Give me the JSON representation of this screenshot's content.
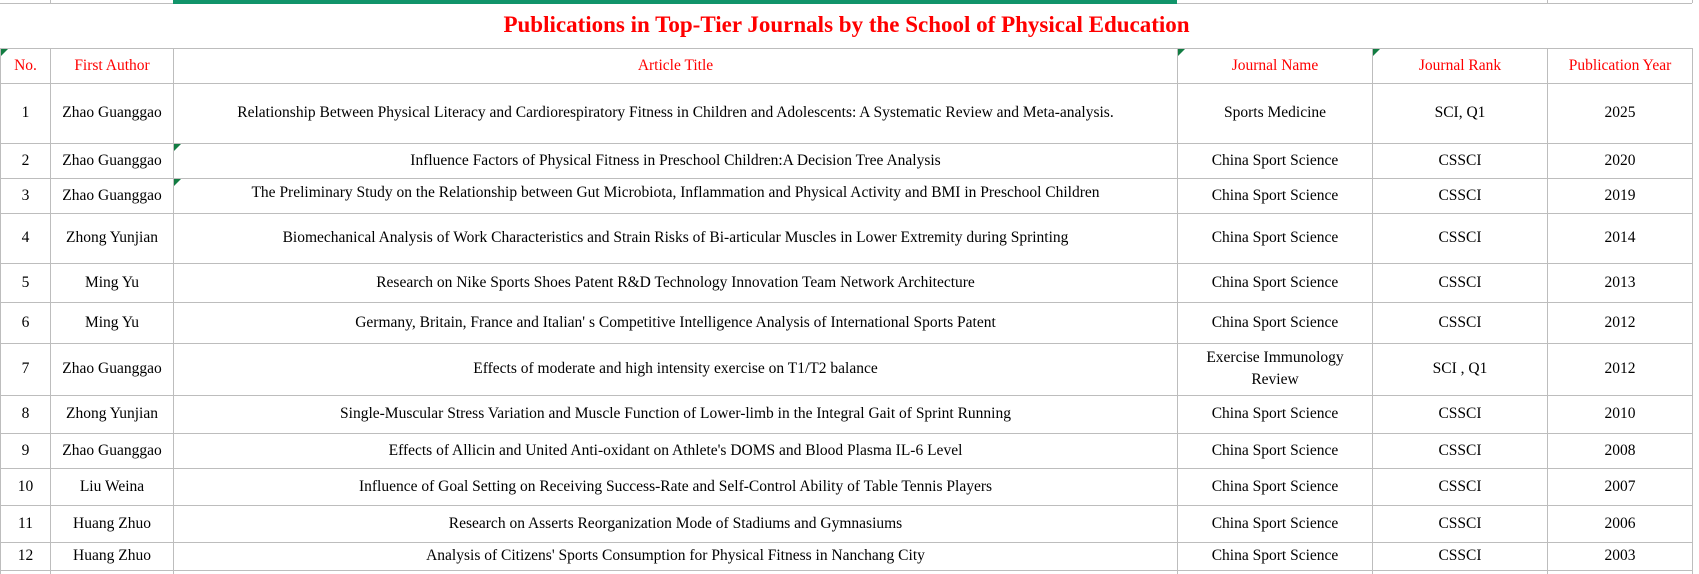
{
  "title": "Publications in Top-Tier Journals by the School of Physical Education",
  "columns": [
    {
      "key": "no",
      "label": "No."
    },
    {
      "key": "first-author",
      "label": "First Author"
    },
    {
      "key": "article-title",
      "label": "Article Title"
    },
    {
      "key": "journal-name",
      "label": "Journal Name"
    },
    {
      "key": "journal-rank",
      "label": "Journal Rank"
    },
    {
      "key": "publication-year",
      "label": "Publication Year"
    }
  ],
  "rows": [
    {
      "no": "1",
      "first_author": "Zhao Guanggao",
      "article_title": "Relationship Between Physical Literacy and Cardiorespiratory Fitness in Children and Adolescents: A Systematic Review and Meta-analysis.",
      "journal_name": "Sports Medicine",
      "journal_rank": "SCI, Q1",
      "publication_year": "2025"
    },
    {
      "no": "2",
      "first_author": "Zhao Guanggao",
      "article_title": "Influence Factors of Physical Fitness in Preschool Children:A Decision Tree Analysis",
      "journal_name": "China Sport Science",
      "journal_rank": "CSSCI",
      "publication_year": "2020"
    },
    {
      "no": "3",
      "first_author": "Zhao Guanggao",
      "article_title": "The Preliminary Study on the Relationship between Gut Microbiota, Inflammation and Physical Activity and BMI in Preschool Children",
      "journal_name": "China Sport Science",
      "journal_rank": "CSSCI",
      "publication_year": "2019"
    },
    {
      "no": "4",
      "first_author": "Zhong Yunjian",
      "article_title": "Biomechanical Analysis of Work Characteristics and Strain Risks of Bi-articular Muscles in Lower Extremity during Sprinting",
      "journal_name": "China Sport Science",
      "journal_rank": "CSSCI",
      "publication_year": "2014"
    },
    {
      "no": "5",
      "first_author": "Ming Yu",
      "article_title": "Research on Nike Sports Shoes Patent R&D Technology Innovation Team Network Architecture",
      "journal_name": "China Sport Science",
      "journal_rank": "CSSCI",
      "publication_year": "2013"
    },
    {
      "no": "6",
      "first_author": "Ming Yu",
      "article_title": "Germany, Britain, France and Italian' s Competitive Intelligence Analysis of International Sports Patent",
      "journal_name": "China Sport Science",
      "journal_rank": "CSSCI",
      "publication_year": "2012"
    },
    {
      "no": "7",
      "first_author": "Zhao Guanggao",
      "article_title": "Effects of moderate and high intensity exercise on T1/T2 balance",
      "journal_name": "Exercise Immunology Review",
      "journal_rank": "SCI ,  Q1",
      "publication_year": "2012"
    },
    {
      "no": "8",
      "first_author": "Zhong Yunjian",
      "article_title": "Single-Muscular Stress Variation and Muscle Function of Lower-limb in the Integral Gait of Sprint Running",
      "journal_name": "China Sport Science",
      "journal_rank": "CSSCI",
      "publication_year": "2010"
    },
    {
      "no": "9",
      "first_author": "Zhao Guanggao",
      "article_title": "Effects of Allicin and United Anti-oxidant on Athlete's DOMS and Blood Plasma IL-6 Level",
      "journal_name": "China Sport Science",
      "journal_rank": "CSSCI",
      "publication_year": "2008"
    },
    {
      "no": "10",
      "first_author": "Liu Weina",
      "article_title": "Influence of Goal Setting on Receiving Success-Rate and Self-Control Ability of Table Tennis Players",
      "journal_name": "China Sport Science",
      "journal_rank": "CSSCI",
      "publication_year": "2007"
    },
    {
      "no": "11",
      "first_author": "Huang Zhuo",
      "article_title": "Research on Asserts Reorganization Mode of Stadiums and Gymnasiums",
      "journal_name": "China Sport Science",
      "journal_rank": "CSSCI",
      "publication_year": "2006"
    },
    {
      "no": "12",
      "first_author": "Huang Zhuo",
      "article_title": "Analysis of Citizens' Sports Consumption for Physical Fitness in Nanchang City",
      "journal_name": "China Sport Science",
      "journal_rank": "CSSCI",
      "publication_year": "2003"
    }
  ],
  "error_indicators": {
    "header_columns": [
      0,
      3,
      4
    ],
    "article_title_rows": [
      2,
      3
    ]
  },
  "colors": {
    "title_red": "#FF0000",
    "header_red": "#FF0000",
    "grid_gray": "#BDBDBD",
    "accent_bar_green": "#11946A",
    "indicator_green": "#127C42"
  }
}
